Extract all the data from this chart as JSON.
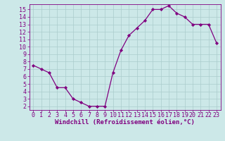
{
  "x": [
    0,
    1,
    2,
    3,
    4,
    5,
    6,
    7,
    8,
    9,
    10,
    11,
    12,
    13,
    14,
    15,
    16,
    17,
    18,
    19,
    20,
    21,
    22,
    23
  ],
  "y": [
    7.5,
    7.0,
    6.5,
    4.5,
    4.5,
    3.0,
    2.5,
    2.0,
    2.0,
    2.0,
    6.5,
    9.5,
    11.5,
    12.5,
    13.5,
    15.0,
    15.0,
    15.5,
    14.5,
    14.0,
    13.0,
    13.0,
    13.0,
    10.5
  ],
  "line_color": "#800080",
  "marker": "D",
  "marker_size": 2.2,
  "bg_color": "#cce8e8",
  "grid_color": "#aacccc",
  "xlabel": "Windchill (Refroidissement éolien,°C)",
  "xlim": [
    -0.5,
    23.5
  ],
  "ylim": [
    1.5,
    15.7
  ],
  "yticks": [
    2,
    3,
    4,
    5,
    6,
    7,
    8,
    9,
    10,
    11,
    12,
    13,
    14,
    15
  ],
  "xticks": [
    0,
    1,
    2,
    3,
    4,
    5,
    6,
    7,
    8,
    9,
    10,
    11,
    12,
    13,
    14,
    15,
    16,
    17,
    18,
    19,
    20,
    21,
    22,
    23
  ],
  "tick_color": "#800080",
  "label_color": "#800080",
  "xlabel_fontsize": 6.5,
  "tick_fontsize": 6.0,
  "linewidth": 0.9
}
